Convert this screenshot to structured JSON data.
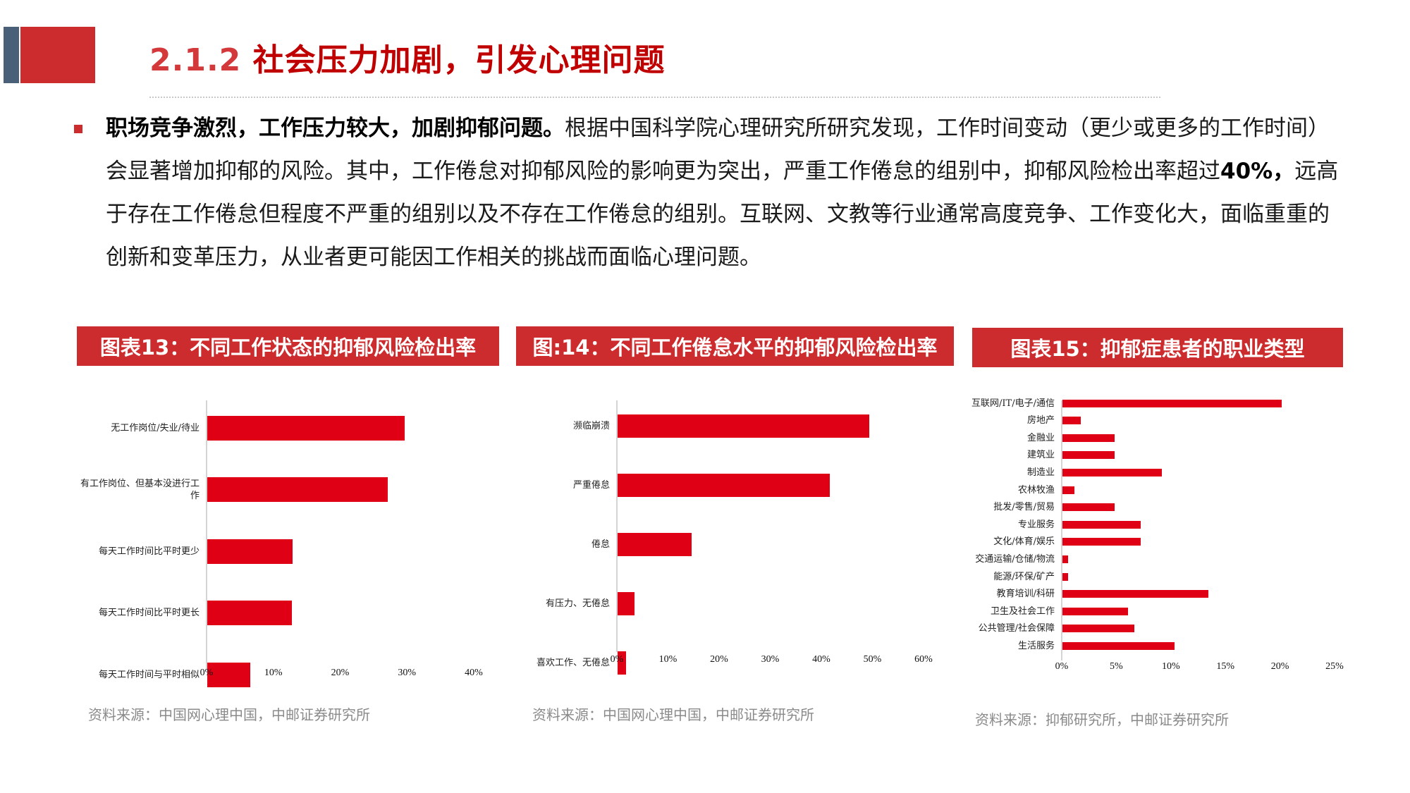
{
  "header": {
    "section_number": "2.1.2",
    "title": "社会压力加剧，引发心理问题",
    "accent_colors": {
      "strip": "#4a6078",
      "block": "#cd2c2e",
      "title": "#c00000"
    }
  },
  "body": {
    "bold_lead": "职场竞争激烈，工作压力较大，加剧抑郁问题。",
    "text_part1": "根据中国科学院心理研究所研究发现，工作时间变动（更少或更多的工作时间）会显著增加抑郁的风险。其中，工作倦怠对抑郁风险的影响更为突出，严重工作倦怠的组别中，抑郁风险检出率超过",
    "bold_figure": "40%，",
    "text_part2": "远高于存在工作倦怠但程度不严重的组别以及不存在工作倦怠的组别。互联网、文教等行业通常高度竞争、工作变化大，面临重重的创新和变革压力，从业者更可能因工作相关的挑战而面临心理问题。"
  },
  "charts": {
    "c13": {
      "title": "图表13：不同工作状态的抑郁风险检出率",
      "categories": [
        "无工作岗位/失业/待业",
        "有工作岗位、但基本没进行工作",
        "每天工作时间比平时更少",
        "每天工作时间比平时更长",
        "每天工作时间与平时相似"
      ],
      "ticks": [
        "0%",
        "10%",
        "20%",
        "30%",
        "40%"
      ],
      "source": "资料来源：中国网心理中国，中邮证券研究所"
    },
    "c14": {
      "title": "图:14：不同工作倦怠水平的抑郁风险检出率",
      "categories": [
        "濒临崩溃",
        "严重倦怠",
        "倦怠",
        "有压力、无倦怠",
        "喜欢工作、无倦怠"
      ],
      "ticks": [
        "0%",
        "10%",
        "20%",
        "30%",
        "40%",
        "50%",
        "60%"
      ],
      "source": "资料来源：中国网心理中国，中邮证券研究所"
    },
    "c15": {
      "title": "图表15：抑郁症患者的职业类型",
      "categories": [
        "互联网/IT/电子/通信",
        "房地产",
        "金融业",
        "建筑业",
        "制造业",
        "农林牧渔",
        "批发/零售/贸易",
        "专业服务",
        "文化/体育/娱乐",
        "交通运输/仓储/物流",
        "能源/环保/矿产",
        "教育培训/科研",
        "卫生及社会工作",
        "公共管理/社会保障",
        "生活服务"
      ],
      "ticks": [
        "0%",
        "5%",
        "10%",
        "15%",
        "20%",
        "25%"
      ],
      "source": "资料来源：抑郁研究所，中邮证券研究所"
    }
  },
  "chart_data": [
    {
      "type": "bar",
      "orientation": "horizontal",
      "title": "图表13：不同工作状态的抑郁风险检出率",
      "categories": [
        "无工作岗位/失业/待业",
        "有工作岗位、但基本没进行工作",
        "每天工作时间比平时更少",
        "每天工作时间比平时更长",
        "每天工作时间与平时相似"
      ],
      "values": [
        29.6,
        27.0,
        12.8,
        12.7,
        6.4
      ],
      "unit": "%",
      "xlim": [
        0,
        40
      ],
      "xticks": [
        "0%",
        "10%",
        "20%",
        "30%",
        "40%"
      ],
      "grid": false,
      "bar_color": "#e00015",
      "source": "资料来源：中国网心理中国，中邮证券研究所"
    },
    {
      "type": "bar",
      "orientation": "horizontal",
      "title": "图:14：不同工作倦怠水平的抑郁风险检出率",
      "categories": [
        "濒临崩溃",
        "严重倦怠",
        "倦怠",
        "有压力、无倦怠",
        "喜欢工作、无倦怠"
      ],
      "values": [
        49.2,
        41.5,
        14.5,
        3.3,
        1.6
      ],
      "unit": "%",
      "xlim": [
        0,
        60
      ],
      "xticks": [
        "0%",
        "10%",
        "20%",
        "30%",
        "40%",
        "50%",
        "60%"
      ],
      "grid": false,
      "bar_color": "#e00015",
      "source": "资料来源：中国网心理中国，中邮证券研究所"
    },
    {
      "type": "bar",
      "orientation": "horizontal",
      "title": "图表15：抑郁症患者的职业类型",
      "categories": [
        "互联网/IT/电子/通信",
        "房地产",
        "金融业",
        "建筑业",
        "制造业",
        "农林牧渔",
        "批发/零售/贸易",
        "专业服务",
        "文化/体育/娱乐",
        "交通运输/仓储/物流",
        "能源/环保/矿产",
        "教育培训/科研",
        "卫生及社会工作",
        "公共管理/社会保障",
        "生活服务"
      ],
      "values": [
        20.1,
        1.7,
        4.8,
        4.8,
        9.1,
        1.1,
        4.8,
        7.2,
        7.2,
        0.5,
        0.5,
        13.4,
        6.0,
        6.6,
        10.3
      ],
      "unit": "%",
      "xlim": [
        0,
        25
      ],
      "xticks": [
        "0%",
        "5%",
        "10%",
        "15%",
        "20%",
        "25%"
      ],
      "grid": false,
      "bar_color": "#e00015",
      "source": "资料来源：抑郁研究所，中邮证券研究所"
    }
  ]
}
